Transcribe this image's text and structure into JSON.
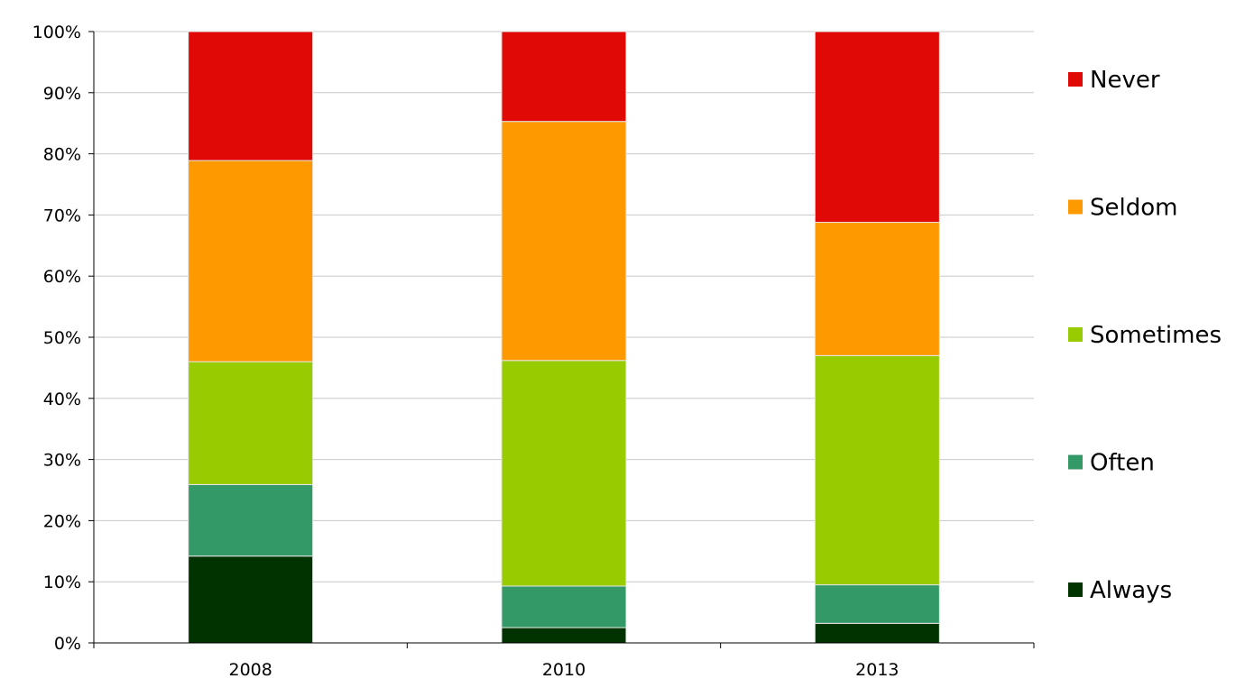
{
  "chart_data": {
    "type": "bar",
    "stacked": true,
    "normalized": true,
    "categories": [
      "2008",
      "2010",
      "2013"
    ],
    "series": [
      {
        "name": "Always",
        "color": "#003300",
        "values": [
          14.2,
          2.5,
          3.2
        ]
      },
      {
        "name": "Often",
        "color": "#339966",
        "values": [
          11.7,
          6.8,
          6.3
        ]
      },
      {
        "name": "Sometimes",
        "color": "#99cc00",
        "values": [
          20.1,
          36.9,
          37.5
        ]
      },
      {
        "name": "Seldom",
        "color": "#ff9900",
        "values": [
          32.9,
          39.1,
          21.8
        ]
      },
      {
        "name": "Never",
        "color": "#e00905",
        "values": [
          21.1,
          14.7,
          31.2
        ]
      }
    ],
    "ylim": [
      0,
      100
    ],
    "yticks": [
      "0%",
      "10%",
      "20%",
      "30%",
      "40%",
      "50%",
      "60%",
      "70%",
      "80%",
      "90%",
      "100%"
    ],
    "grid": true,
    "legend": "right",
    "title": "",
    "xlabel": "",
    "ylabel": ""
  }
}
